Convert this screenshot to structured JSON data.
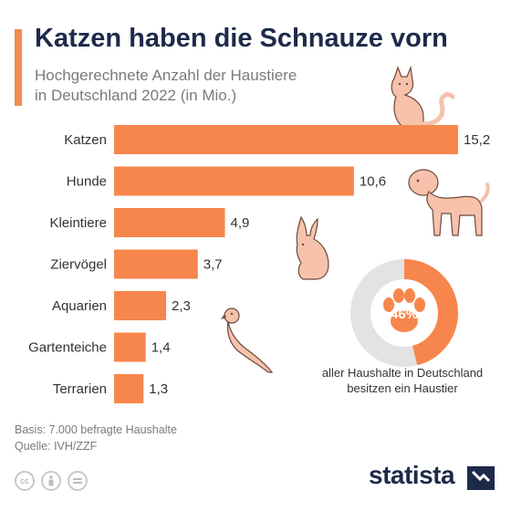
{
  "title": "Katzen haben die Schnauze vorn",
  "subtitle_line1": "Hochgerechnete Anzahl der Haustiere",
  "subtitle_line2": "in Deutschland 2022 (in Mio.)",
  "chart_data": {
    "type": "bar",
    "orientation": "horizontal",
    "title": "Katzen haben die Schnauze vorn",
    "subtitle": "Hochgerechnete Anzahl der Haustiere in Deutschland 2022 (in Mio.)",
    "categories": [
      "Katzen",
      "Hunde",
      "Kleintiere",
      "Ziervögel",
      "Aquarien",
      "Gartenteiche",
      "Terrarien"
    ],
    "values": [
      15.2,
      10.6,
      4.9,
      3.7,
      2.3,
      1.4,
      1.3
    ],
    "value_labels": [
      "15,2",
      "10,6",
      "4,9",
      "3,7",
      "2,3",
      "1,4",
      "1,3"
    ],
    "xlim": [
      0,
      15.2
    ],
    "grid": false,
    "bar_color": "#f7864c"
  },
  "info": {
    "percent": "46%",
    "fraction": 0.46,
    "text_line1": "aller Haushalte in Deutschland",
    "text_line2": "besitzen ein Haustier",
    "ring_color": "#f7864c",
    "ring_track_color": "#e3e3e3"
  },
  "footer": {
    "basis": "Basis: 7.000 befragte Haushalte",
    "source": "Quelle: IVH/ZZF"
  },
  "icons": [
    "cc-icon",
    "attribution-icon",
    "no-derivatives-icon"
  ],
  "brand": "statista",
  "colors": {
    "accent": "#f28a50",
    "title": "#1e2a4a",
    "subtitle": "#7a7a7a",
    "illustration": "#f6c2ac"
  }
}
